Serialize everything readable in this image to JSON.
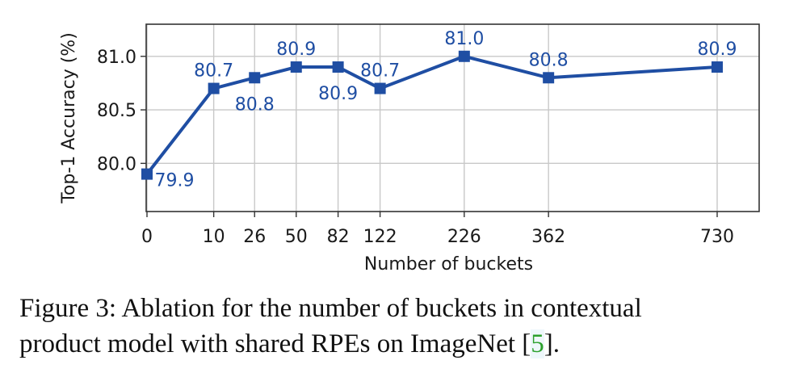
{
  "chart_data": {
    "type": "line",
    "xlabel": "Number of buckets",
    "ylabel": "Top-1 Accuracy (%)",
    "x": [
      0,
      10,
      26,
      50,
      82,
      122,
      226,
      362,
      730
    ],
    "x_tick_labels": [
      "0",
      "10",
      "26",
      "50",
      "82",
      "122",
      "226",
      "362",
      "730"
    ],
    "y_ticks": [
      80.0,
      80.5,
      81.0
    ],
    "y_tick_labels": [
      "80.0",
      "80.5",
      "81.0"
    ],
    "ylim": [
      79.55,
      81.3
    ],
    "grid": true,
    "series": [
      {
        "values": [
          79.9,
          80.7,
          80.8,
          80.9,
          80.9,
          80.7,
          81.0,
          80.8,
          80.9
        ],
        "labels": [
          "79.9",
          "80.7",
          "80.8",
          "80.9",
          "80.9",
          "80.7",
          "81.0",
          "80.8",
          "80.9"
        ],
        "color": "#1f4ea3",
        "marker": "square"
      }
    ]
  },
  "caption": {
    "text_line1": "Figure 3: Ablation for the number of buckets in contextual",
    "text_line2_before": "product model with shared RPEs on ImageNet [",
    "ref": "5",
    "text_line2_after": "]."
  }
}
